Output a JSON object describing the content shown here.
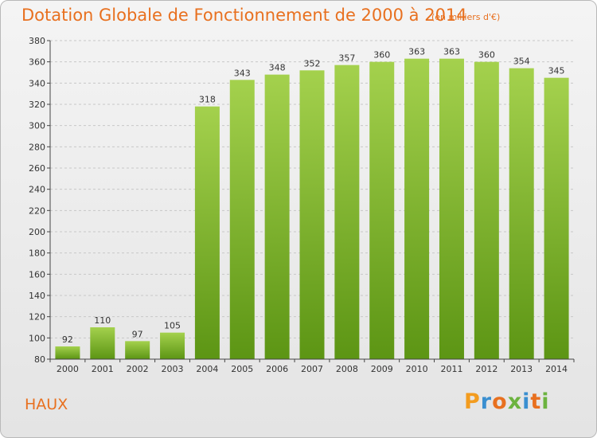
{
  "header": {
    "title": "Dotation Globale de Fonctionnement de 2000 à 2014",
    "unit": "(en milliers d'€)"
  },
  "footer": {
    "place": "HAUX",
    "logo": "Proxiti",
    "logo_colors": [
      "#f39c1f",
      "#3a8fd0",
      "#e8701f",
      "#6cb33f",
      "#3a8fd0",
      "#e8701f",
      "#6cb33f"
    ]
  },
  "colors": {
    "bar_light": "#a4d14d",
    "bar_dark": "#5c9514",
    "accent": "#e8701f"
  },
  "chart_data": {
    "type": "bar",
    "title": "Dotation Globale de Fonctionnement de 2000 à 2014",
    "subtitle": "(en milliers d'€)",
    "categories": [
      "2000",
      "2001",
      "2002",
      "2003",
      "2004",
      "2005",
      "2006",
      "2007",
      "2008",
      "2009",
      "2010",
      "2011",
      "2012",
      "2013",
      "2014"
    ],
    "values": [
      92,
      110,
      97,
      105,
      318,
      343,
      348,
      352,
      357,
      360,
      363,
      363,
      360,
      354,
      345
    ],
    "ylim": [
      80,
      380
    ],
    "yticks": [
      80,
      100,
      120,
      140,
      160,
      180,
      200,
      220,
      240,
      260,
      280,
      300,
      320,
      340,
      360,
      380
    ],
    "grid": true,
    "xlabel": "",
    "ylabel": ""
  }
}
